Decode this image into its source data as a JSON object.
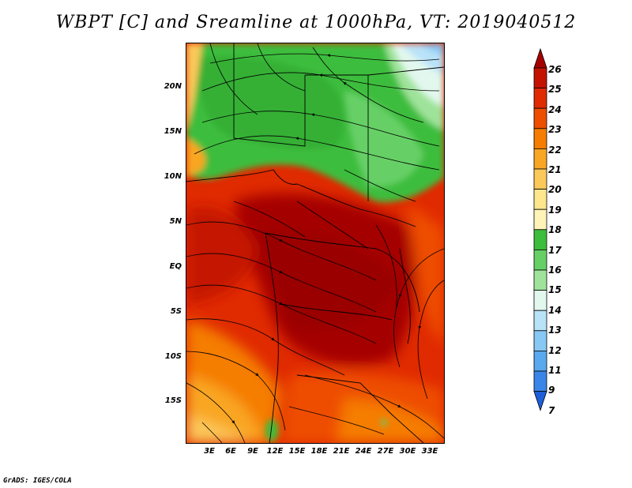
{
  "title": "WBPT [C] and Sreamline at 1000hPa, VT: 2019040512",
  "lat_labels": [
    "20N",
    "15N",
    "10N",
    "5N",
    "EQ",
    "5S",
    "10S",
    "15S"
  ],
  "lon_labels": [
    "3E",
    "6E",
    "9E",
    "12E",
    "15E",
    "18E",
    "21E",
    "24E",
    "27E",
    "30E",
    "33E"
  ],
  "colorbar": {
    "levels": [
      "26",
      "25",
      "24",
      "23",
      "22",
      "21",
      "20",
      "19",
      "18",
      "17",
      "16",
      "15",
      "14",
      "13",
      "12",
      "11",
      "9",
      "7"
    ],
    "colors": [
      "#a50000",
      "#c41200",
      "#e02a00",
      "#ee4e00",
      "#f57d00",
      "#f9a624",
      "#fbc85a",
      "#fde68c",
      "#fff3b8",
      "#3cbd3c",
      "#66d066",
      "#9fe39a",
      "#e2f8ee",
      "#b8e2f8",
      "#88c8f4",
      "#5aa8ee",
      "#3a86e8",
      "#1e5ed8"
    ]
  },
  "footer": "GrADS: IGES/COLA"
}
